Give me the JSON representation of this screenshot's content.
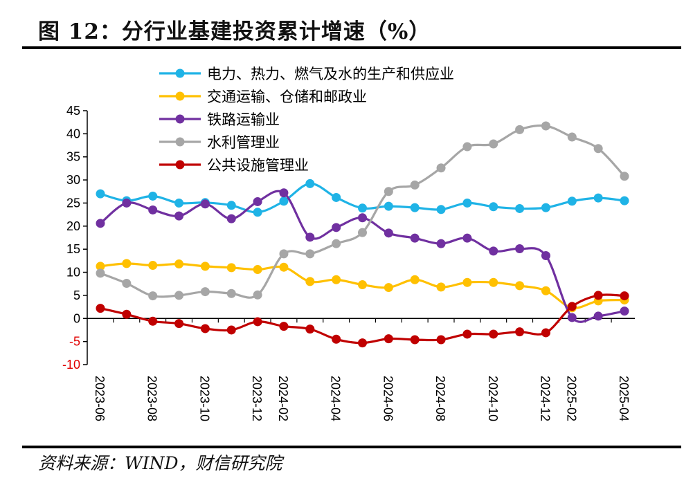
{
  "figure": {
    "title": "图 12：分行业基建投资累计增速（%）",
    "source": "资料来源：WIND，财信研究院"
  },
  "chart_data": {
    "type": "line",
    "title": "",
    "xlabel": "",
    "ylabel": "",
    "ylim": [
      -10,
      45
    ],
    "yticks": [
      45,
      40,
      35,
      30,
      25,
      20,
      15,
      10,
      5,
      0,
      -5,
      -10
    ],
    "negative_tick_color": "#e00000",
    "grid": false,
    "legend_position": "top-center",
    "x": [
      "2023-06",
      "2023-07",
      "2023-08",
      "2023-09",
      "2023-10",
      "2023-11",
      "2023-12",
      "2024-02",
      "2024-03",
      "2024-04",
      "2024-05",
      "2024-06",
      "2024-07",
      "2024-08",
      "2024-09",
      "2024-10",
      "2024-11",
      "2024-12",
      "2025-02",
      "2025-03",
      "2025-04"
    ],
    "x_labels": [
      "2023-06",
      "2023-08",
      "2023-10",
      "2023-12",
      "2024-02",
      "2024-04",
      "2024-06",
      "2024-08",
      "2024-10",
      "2024-12",
      "2025-02",
      "2025-04"
    ],
    "series": [
      {
        "name": "电力、热力、燃气及水的生产和供应业",
        "color": "#1fb3e6",
        "values": [
          27.0,
          25.5,
          26.5,
          25.0,
          25.1,
          24.5,
          23.0,
          25.4,
          29.2,
          26.2,
          23.9,
          24.3,
          24.0,
          23.6,
          25.0,
          24.2,
          23.8,
          24.0,
          25.4,
          26.1,
          25.5
        ]
      },
      {
        "name": "交通运输、仓储和邮政业",
        "color": "#ffc000",
        "values": [
          11.3,
          11.9,
          11.5,
          11.8,
          11.3,
          11.0,
          10.6,
          11.1,
          8.0,
          8.4,
          7.3,
          6.7,
          8.4,
          6.8,
          7.8,
          7.8,
          7.1,
          6.0,
          2.3,
          3.8,
          4.0
        ]
      },
      {
        "name": "铁路运输业",
        "color": "#7030a0",
        "values": [
          20.6,
          25.0,
          23.5,
          22.2,
          24.8,
          21.6,
          25.3,
          27.2,
          17.6,
          19.7,
          21.8,
          18.5,
          17.4,
          16.2,
          17.4,
          14.6,
          15.1,
          13.6,
          0.2,
          0.5,
          1.6
        ]
      },
      {
        "name": "水利管理业",
        "color": "#a6a6a6",
        "values": [
          9.8,
          7.6,
          4.9,
          5.0,
          5.8,
          5.4,
          5.1,
          14.0,
          14.0,
          16.2,
          18.6,
          27.5,
          28.9,
          32.6,
          37.2,
          37.8,
          40.9,
          41.7,
          39.3,
          36.8,
          30.8
        ]
      },
      {
        "name": "公共设施管理业",
        "color": "#c00000",
        "values": [
          2.2,
          0.9,
          -0.6,
          -1.1,
          -2.2,
          -2.5,
          -0.7,
          -1.7,
          -2.3,
          -4.5,
          -5.3,
          -4.4,
          -4.6,
          -4.6,
          -3.4,
          -3.4,
          -2.9,
          -3.1,
          2.6,
          5.0,
          4.9
        ]
      }
    ]
  }
}
